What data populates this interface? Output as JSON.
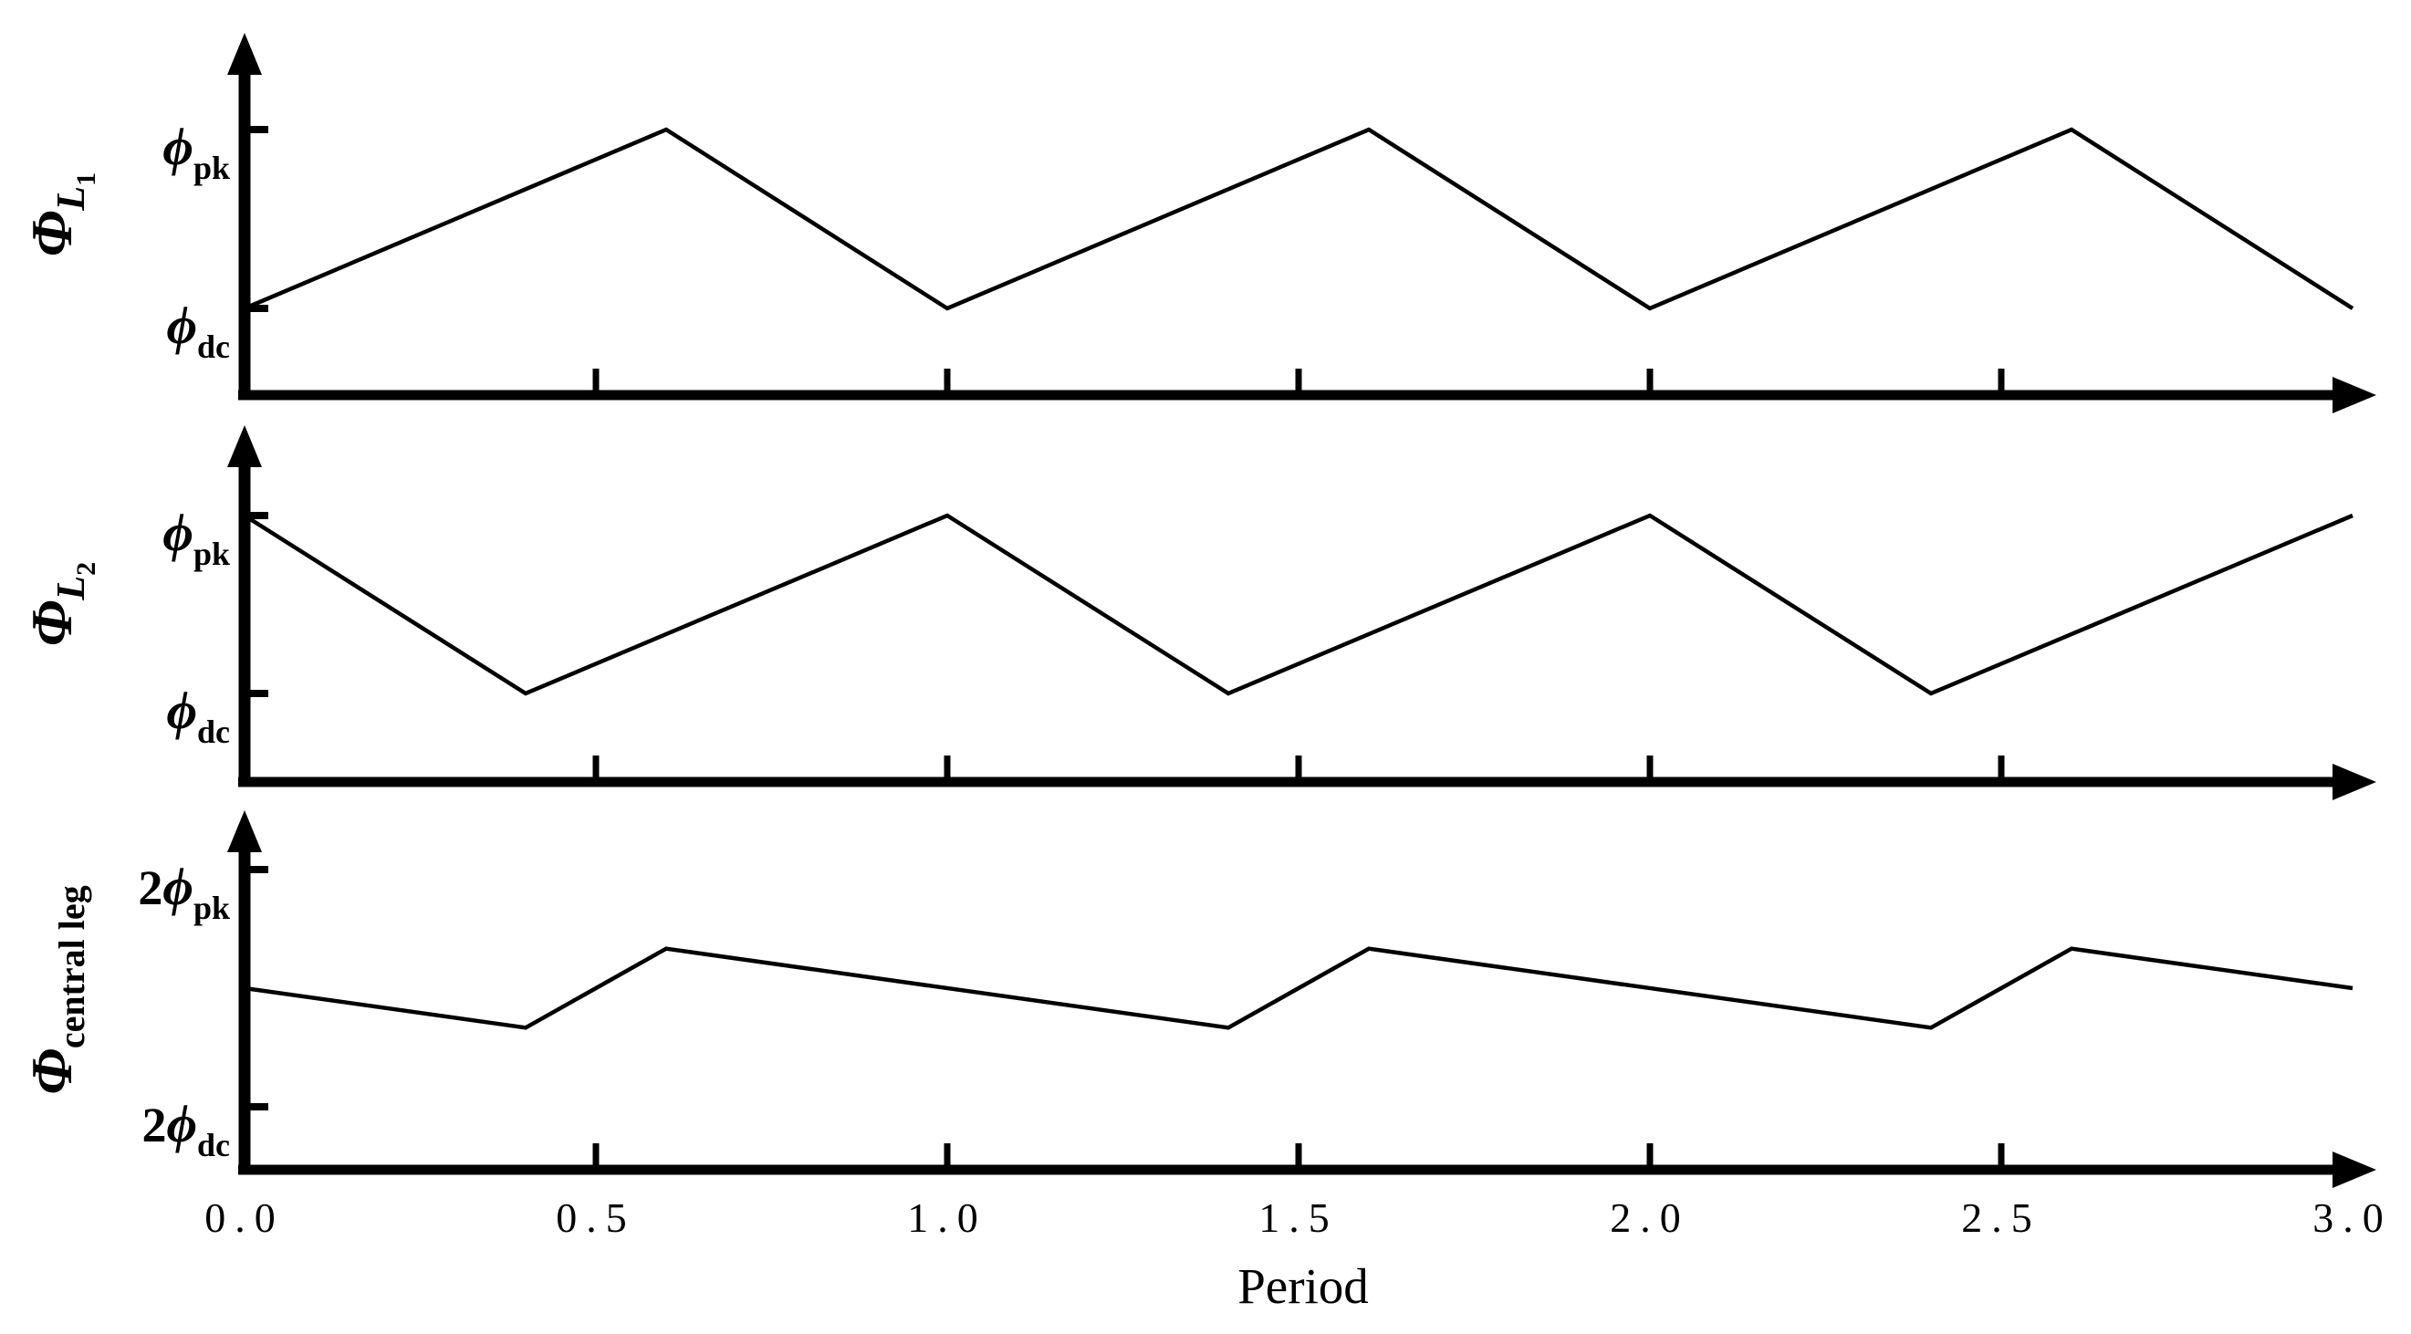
{
  "figure": {
    "colors": {
      "ink": "#000000",
      "background": "#ffffff"
    },
    "grid": false,
    "legend": "none"
  },
  "chart_data": {
    "type": "line",
    "title": "",
    "xlabel": "Period",
    "ylabel": "",
    "xlim": [
      0.0,
      3.0
    ],
    "x_axis_ticks": [
      0.5,
      1.0,
      1.5,
      2.0,
      2.5
    ],
    "x_tick_labels": [
      {
        "t": 0.0,
        "label": "0.0"
      },
      {
        "t": 0.5,
        "label": "0.5"
      },
      {
        "t": 1.0,
        "label": "1.0"
      },
      {
        "t": 1.5,
        "label": "1.5"
      },
      {
        "t": 2.0,
        "label": "2.0"
      },
      {
        "t": 2.5,
        "label": "2.5"
      },
      {
        "t": 3.0,
        "label": "3.0"
      }
    ],
    "panels": [
      {
        "id": "phi-L1",
        "y_label": {
          "main": "Φ",
          "sub": "L",
          "subsub": "1",
          "sub_italic": true
        },
        "y_ticks": [
          {
            "value": 1,
            "prefix": "",
            "symbol": "ϕ",
            "subscript": "pk"
          },
          {
            "value": 0,
            "prefix": "",
            "symbol": "ϕ",
            "subscript": "dc"
          }
        ],
        "y_scale_max": 1,
        "series": {
          "name": "Phi_L1",
          "x": [
            0.0,
            0.6,
            1.0,
            1.6,
            2.0,
            2.6,
            3.0
          ],
          "y": [
            0,
            1,
            0,
            1,
            0,
            1,
            0
          ]
        }
      },
      {
        "id": "phi-L2",
        "y_label": {
          "main": "Φ",
          "sub": "L",
          "subsub": "2",
          "sub_italic": true
        },
        "y_ticks": [
          {
            "value": 1,
            "prefix": "",
            "symbol": "ϕ",
            "subscript": "pk"
          },
          {
            "value": 0,
            "prefix": "",
            "symbol": "ϕ",
            "subscript": "dc"
          }
        ],
        "y_scale_max": 1,
        "series": {
          "name": "Phi_L2",
          "x": [
            0.0,
            0.4,
            1.0,
            1.4,
            2.0,
            2.4,
            3.0
          ],
          "y": [
            1,
            0,
            1,
            0,
            1,
            0,
            1
          ]
        }
      },
      {
        "id": "phi-central-leg",
        "y_label": {
          "main": "Φ",
          "sub": "central leg",
          "subsub": "",
          "sub_italic": false
        },
        "y_ticks": [
          {
            "value": 2,
            "prefix": "2",
            "symbol": "ϕ",
            "subscript": "pk"
          },
          {
            "value": 0,
            "prefix": "2",
            "symbol": "ϕ",
            "subscript": "dc"
          }
        ],
        "y_scale_max": 2,
        "series": {
          "name": "Phi_central_leg",
          "x": [
            0.0,
            0.4,
            0.6,
            1.4,
            1.6,
            2.4,
            2.6,
            3.0
          ],
          "y": [
            1.0,
            0.6667,
            1.3333,
            0.6667,
            1.3333,
            0.6667,
            1.3333,
            1.0
          ]
        }
      }
    ]
  }
}
